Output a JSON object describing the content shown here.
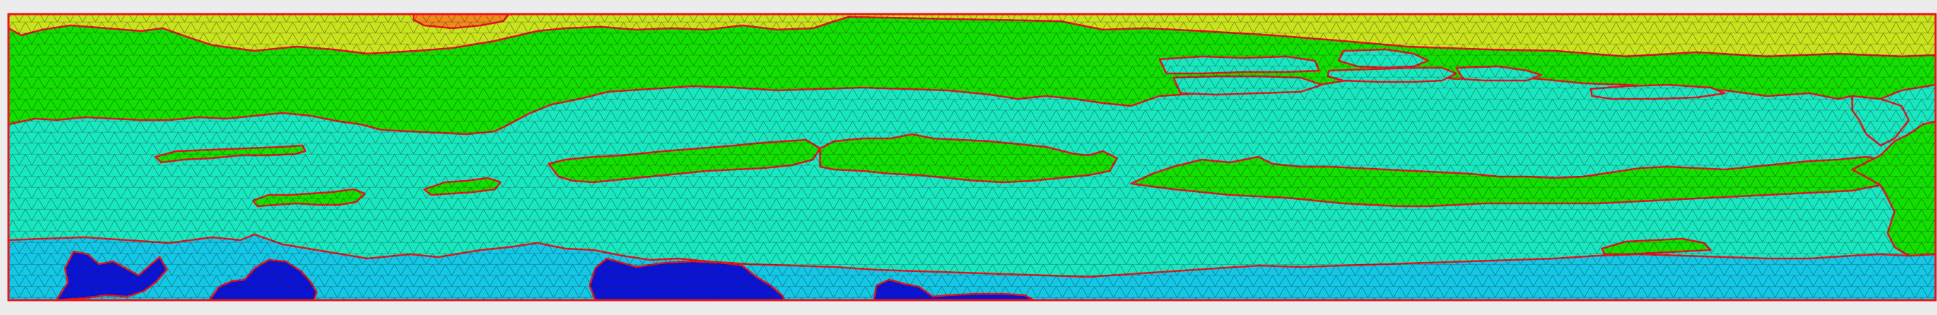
{
  "view": {
    "description_name": "mesh-partition-view",
    "colors": {
      "background": "#ececec",
      "frame": "#e8141e",
      "boundary": "#e8141e",
      "mesh_line": "#1a1a1a",
      "yellow_zone": "#c9e31c",
      "orange_zone": "#f08a1a",
      "green_zone": "#12e000",
      "cyan_zone": "#18e8c0",
      "sky_zone": "#12c8e6",
      "blue_zone": "#0a14d8"
    }
  }
}
